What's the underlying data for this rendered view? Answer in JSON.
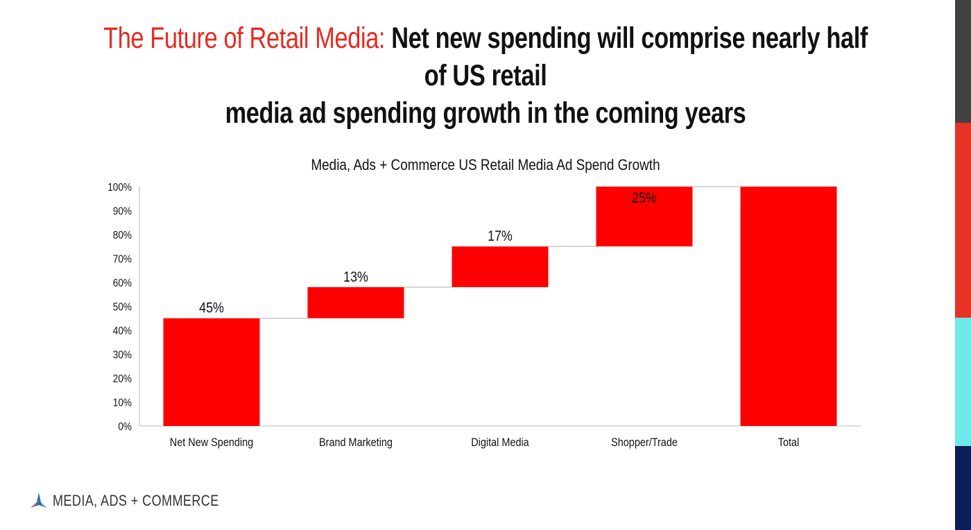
{
  "headline": {
    "accent_text": "The Future of Retail Media:",
    "line1_rest": "Net new spending will comprise nearly half of US retail",
    "line2": "media ad spending growth in the coming years"
  },
  "colors": {
    "accent_red": "#e8281e",
    "bar_red": "#ff0000",
    "connector_gray": "#c8c8c8",
    "stripe_colors": [
      "#414141",
      "#e63324",
      "#6ee8ea",
      "#0c1d57"
    ]
  },
  "chart_data": {
    "type": "bar",
    "subtype": "waterfall",
    "title": "Media, Ads + Commerce US Retail Media Ad Spend Growth",
    "xlabel": "",
    "ylabel": "",
    "ylim": [
      0,
      100
    ],
    "yticks": [
      "0%",
      "10%",
      "20%",
      "30%",
      "40%",
      "50%",
      "60%",
      "70%",
      "80%",
      "90%",
      "100%"
    ],
    "categories": [
      "Net New Spending",
      "Brand Marketing",
      "Digital Media",
      "Shopper/Trade",
      "Total"
    ],
    "values": [
      45,
      13,
      17,
      25,
      100
    ],
    "bases": [
      0,
      45,
      58,
      75,
      0
    ],
    "data_labels": [
      "45%",
      "13%",
      "17%",
      "25%",
      ""
    ],
    "label_positions": [
      "above",
      "above",
      "above",
      "inside-top",
      "none"
    ],
    "grid": false,
    "legend": "none"
  },
  "footer": {
    "logo_text": "MEDIA, ADS + COMMERCE",
    "logo_icon": "triangle-tri-blade-icon"
  }
}
